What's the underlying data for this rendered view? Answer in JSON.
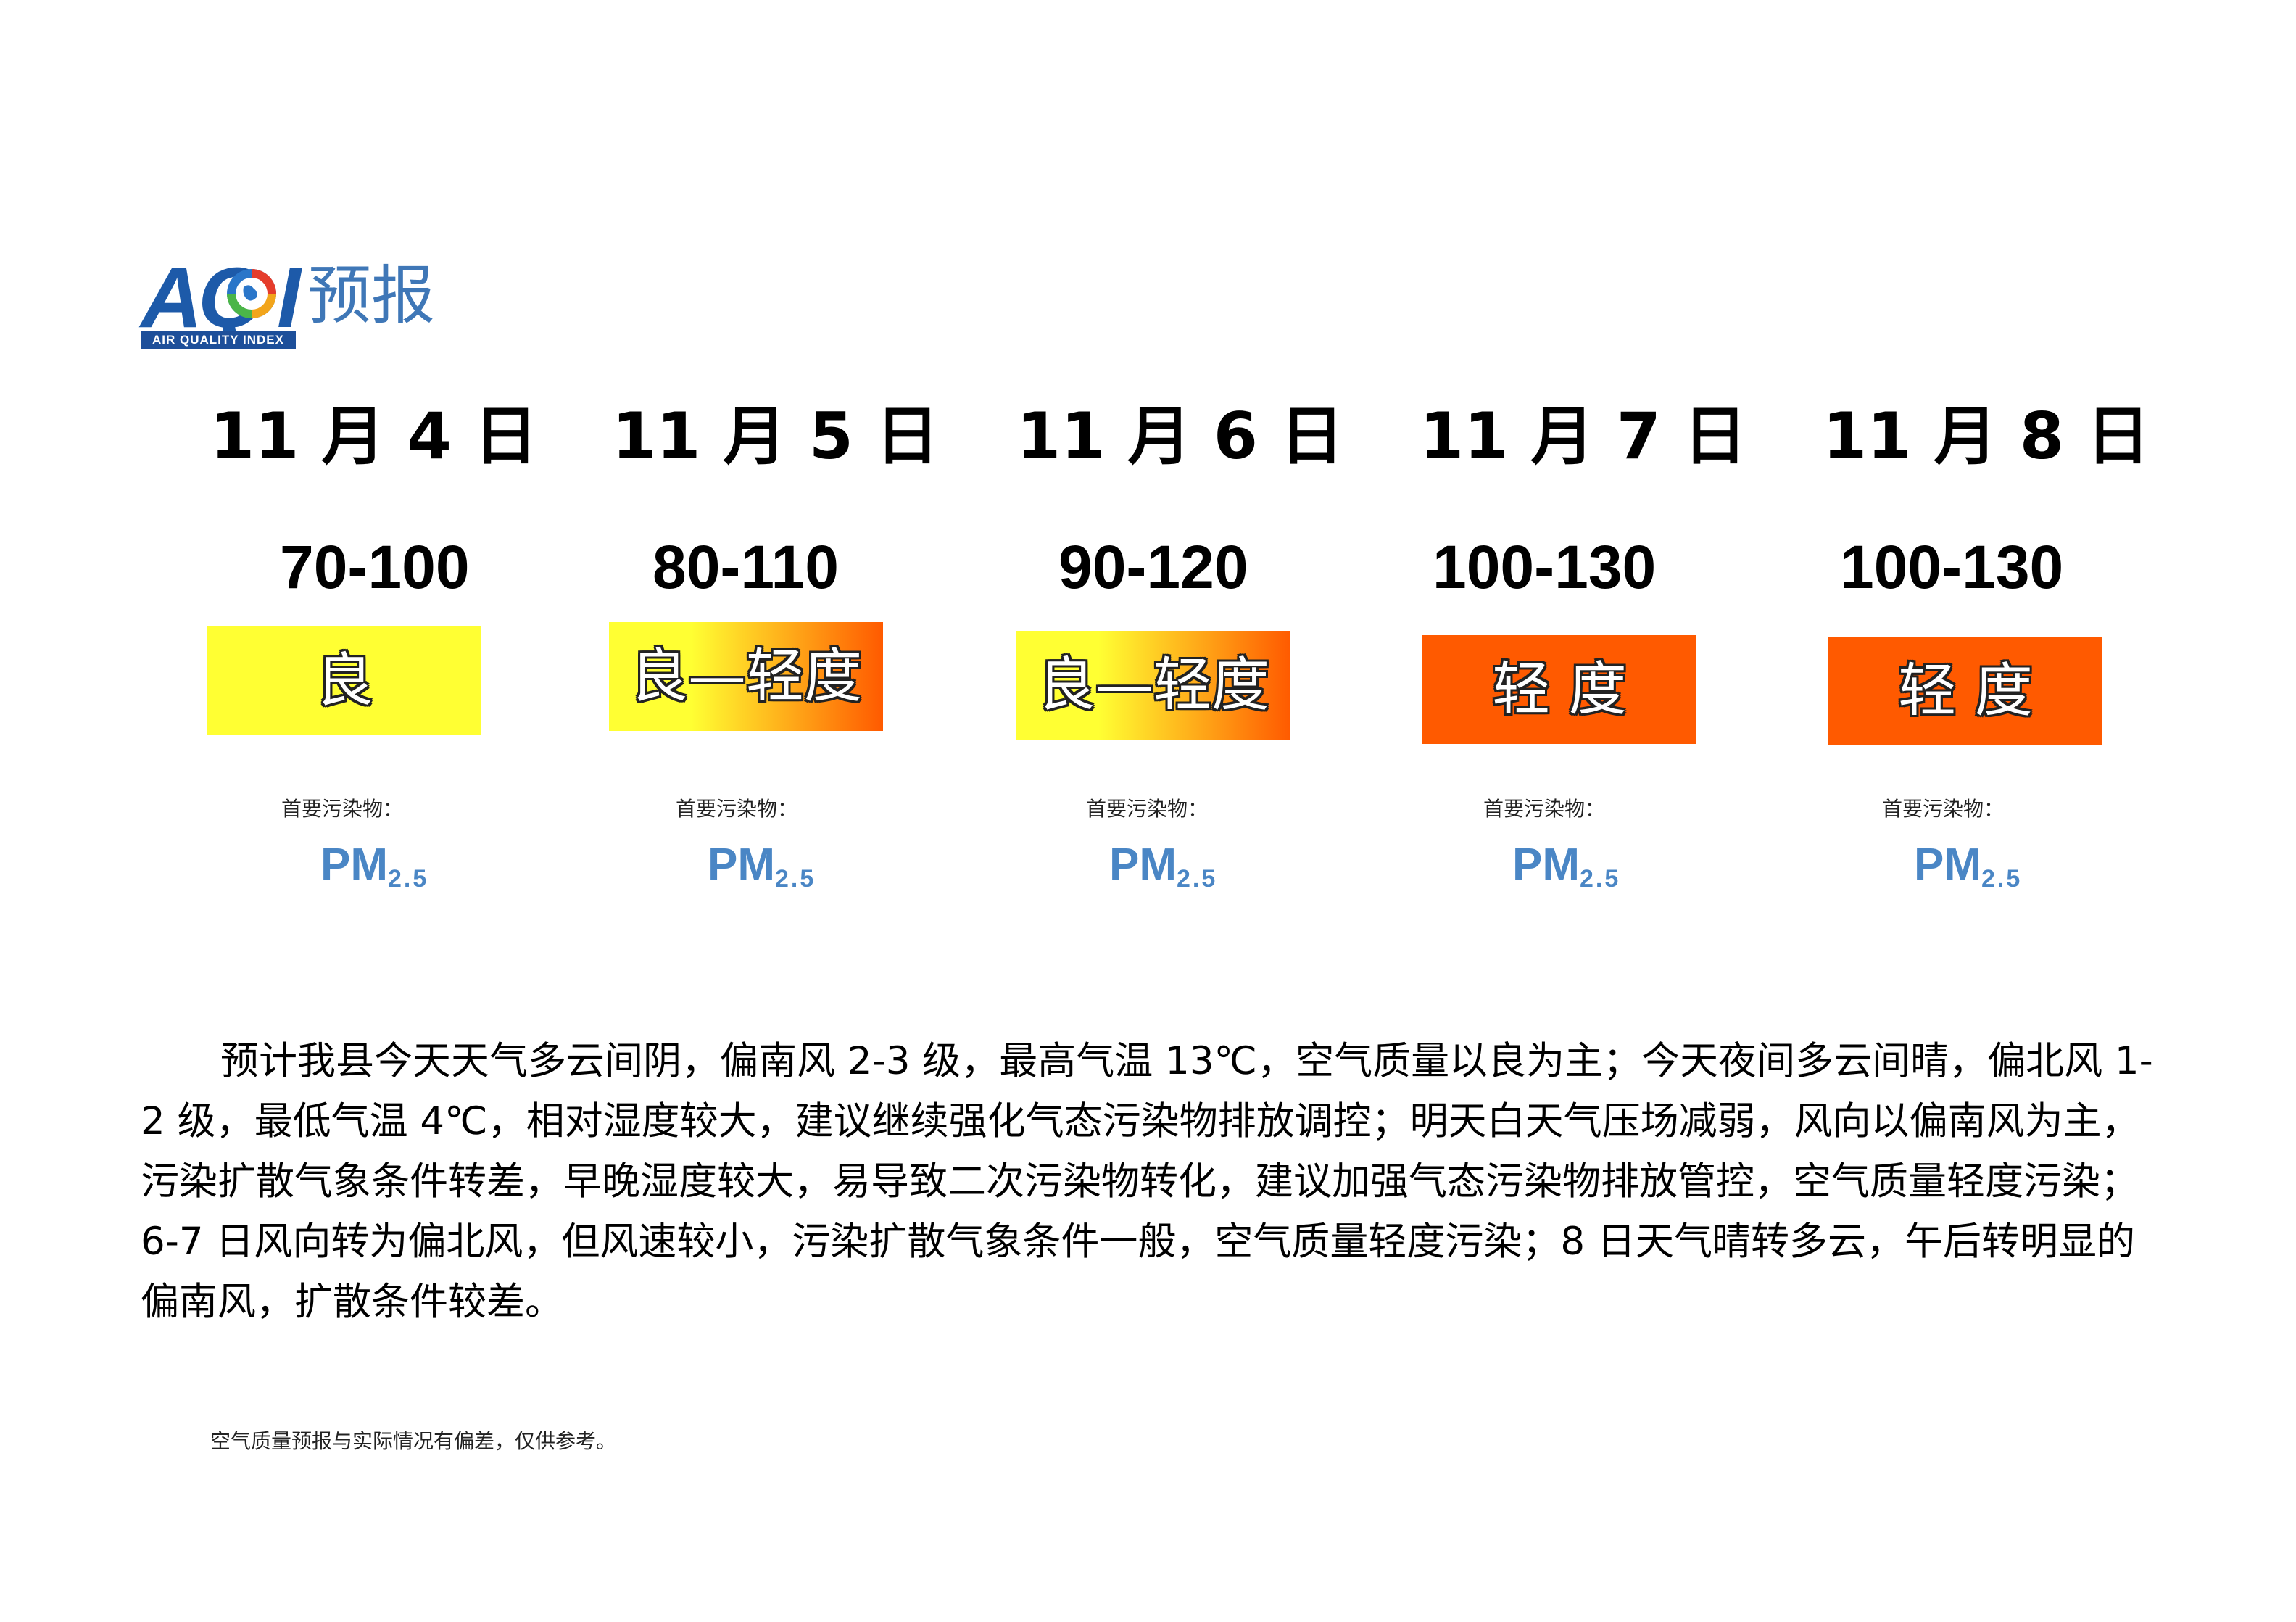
{
  "header": {
    "logo_text": "AQI",
    "logo_subtitle": "AIR QUALITY INDEX",
    "title": "预报"
  },
  "days": [
    {
      "date": "11 月 4 日",
      "range": "70-100",
      "level": "良",
      "pollutant_label": "首要污染物：",
      "pollutant": "PM",
      "pollutant_sub": "2.5",
      "badge_colors": [
        "#ffff33",
        "#ffff33"
      ]
    },
    {
      "date": "11 月 5 日",
      "range": "80-110",
      "level": "良—轻度",
      "pollutant_label": "首要污染物：",
      "pollutant": "PM",
      "pollutant_sub": "2.5",
      "badge_colors": [
        "#ffff33",
        "#ff5a00"
      ]
    },
    {
      "date": "11 月 6 日",
      "range": "90-120",
      "level": "良—轻度",
      "pollutant_label": "首要污染物：",
      "pollutant": "PM",
      "pollutant_sub": "2.5",
      "badge_colors": [
        "#ffff33",
        "#ff5a00"
      ]
    },
    {
      "date": "11 月 7 日",
      "range": "100-130",
      "level": "轻 度",
      "pollutant_label": "首要污染物：",
      "pollutant": "PM",
      "pollutant_sub": "2.5",
      "badge_colors": [
        "#ff5a00",
        "#ff5a00"
      ]
    },
    {
      "date": "11 月 8 日",
      "range": "100-130",
      "level": "轻 度",
      "pollutant_label": "首要污染物：",
      "pollutant": "PM",
      "pollutant_sub": "2.5",
      "badge_colors": [
        "#ff5a00",
        "#ff5a00"
      ]
    }
  ],
  "forecast_text": "预计我县今天天气多云间阴，偏南风 2-3 级，最高气温 13℃，空气质量以良为主；今天夜间多云间晴，偏北风 1-2 级，最低气温 4℃，相对湿度较大，建议继续强化气态污染物排放调控；明天白天气压场减弱，风向以偏南风为主，污染扩散气象条件转差，早晚湿度较大，易导致二次污染物转化，建议加强气态污染物排放管控，空气质量轻度污染；6-7 日风向转为偏北风，但风速较小，污染扩散气象条件一般，空气质量轻度污染；8 日天气晴转多云，午后转明显的偏南风，扩散条件较差。",
  "footnote": "空气质量预报与实际情况有偏差，仅供参考。"
}
